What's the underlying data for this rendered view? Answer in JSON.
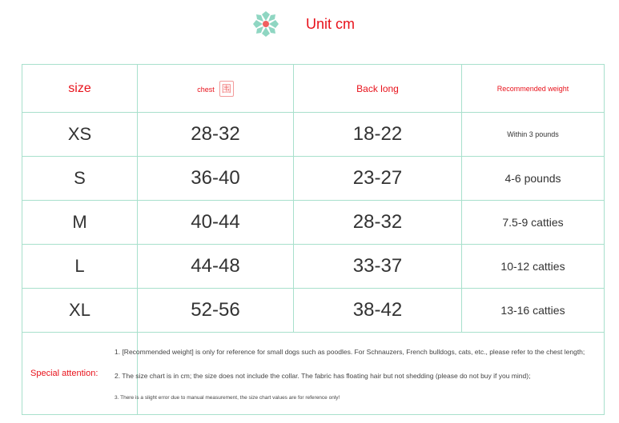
{
  "header": {
    "title": "Unit cm",
    "logo": "flower-icon",
    "accent": "#e8121b",
    "border_color": "#a8e0cc"
  },
  "table": {
    "columns": [
      "size",
      "chest",
      "Back long",
      "Recommended weight"
    ],
    "chest_icon": "stamp-icon",
    "rows": [
      [
        "XS",
        "28-32",
        "18-22",
        "Within 3 pounds"
      ],
      [
        "S",
        "36-40",
        "23-27",
        "4-6 pounds"
      ],
      [
        "M",
        "40-44",
        "28-32",
        "7.5-9 catties"
      ],
      [
        "L",
        "44-48",
        "33-37",
        "10-12 catties"
      ],
      [
        "XL",
        "52-56",
        "38-42",
        "13-16 catties"
      ]
    ]
  },
  "notes": {
    "label": "Special attention:",
    "items": [
      "1. [Recommended weight] is only for reference for small dogs such as poodles. For Schnauzers, French bulldogs, cats, etc., please refer to the chest length;",
      "2. The size chart is in cm; the size does not include the collar. The fabric has floating hair but not shedding (please do not buy if you mind);",
      "3. There is a slight error due to manual measurement, the size chart values are for reference only!"
    ]
  }
}
